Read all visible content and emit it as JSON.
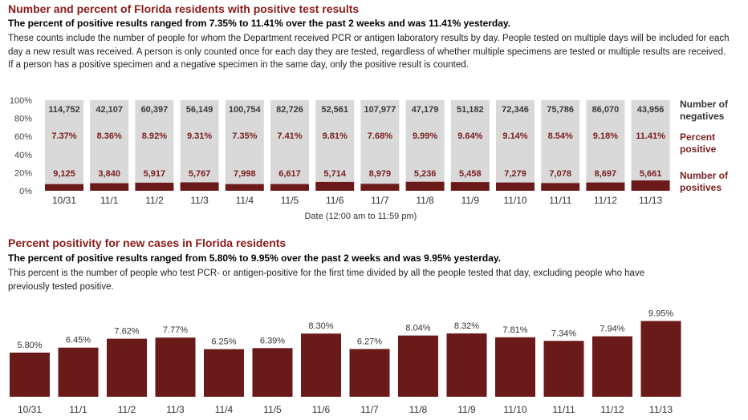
{
  "section1": {
    "title": "Number and percent of Florida residents with positive test results",
    "subtitle": "The percent of positive results ranged from 7.35% to 11.41% over the past 2 weeks and was 11.41% yesterday.",
    "description": "These counts include the number of people for whom the Department received PCR or antigen laboratory results by day. People tested on multiple days will be included for each day a new result was received. A person is only counted once for each day they are tested, regardless of whether multiple specimens are tested or multiple results are received. If a person has a positive specimen and a negative specimen in the same day, only the positive result is counted."
  },
  "section2": {
    "title": "Percent positivity for new cases in Florida residents",
    "subtitle": "The percent of positive results ranged from 5.80% to 9.95% over the past 2 weeks and was 9.95% yesterday.",
    "description": "This percent is the number of people who test PCR- or antigen-positive for the first time divided by all the people tested that day, excluding people who have previously tested positive."
  },
  "colors": {
    "positive": "#6b1a1a",
    "negative": "#d9d9d9",
    "label_red": "#7a2020",
    "title_red": "#8b1a1a"
  },
  "chart_data": [
    {
      "type": "bar",
      "stacked": true,
      "categories": [
        "10/31",
        "11/1",
        "11/2",
        "11/3",
        "11/4",
        "11/5",
        "11/6",
        "11/7",
        "11/8",
        "11/9",
        "11/10",
        "11/11",
        "11/12",
        "11/13"
      ],
      "xlabel": "Date (12:00 am to 11:59 pm)",
      "ylim": [
        0,
        100
      ],
      "yticks": [
        "0%",
        "20%",
        "40%",
        "60%",
        "80%",
        "100%"
      ],
      "series": [
        {
          "name": "Number of negatives",
          "labels": [
            "114,752",
            "42,107",
            "60,397",
            "56,149",
            "100,754",
            "82,726",
            "52,561",
            "107,977",
            "47,179",
            "51,182",
            "72,346",
            "75,786",
            "86,070",
            "43,956"
          ]
        },
        {
          "name": "Percent positive",
          "labels": [
            "7.37%",
            "8.36%",
            "8.92%",
            "9.31%",
            "7.35%",
            "7.41%",
            "9.81%",
            "7.68%",
            "9.99%",
            "9.64%",
            "9.14%",
            "8.54%",
            "9.18%",
            "11.41%"
          ],
          "values": [
            7.37,
            8.36,
            8.92,
            9.31,
            7.35,
            7.41,
            9.81,
            7.68,
            9.99,
            9.64,
            9.14,
            8.54,
            9.18,
            11.41
          ]
        },
        {
          "name": "Number of positives",
          "labels": [
            "9,125",
            "3,840",
            "5,917",
            "5,767",
            "7,998",
            "6,617",
            "5,714",
            "8,979",
            "5,236",
            "5,458",
            "7,279",
            "7,078",
            "8,697",
            "5,661"
          ]
        }
      ],
      "legend": [
        "Number of negatives",
        "Percent positive",
        "Number of positives"
      ]
    },
    {
      "type": "bar",
      "categories": [
        "10/31",
        "11/1",
        "11/2",
        "11/3",
        "11/4",
        "11/5",
        "11/6",
        "11/7",
        "11/8",
        "11/9",
        "11/10",
        "11/11",
        "11/12",
        "11/13"
      ],
      "values": [
        5.8,
        6.45,
        7.62,
        7.77,
        6.25,
        6.39,
        8.3,
        6.27,
        8.04,
        8.32,
        7.81,
        7.34,
        7.94,
        9.95
      ],
      "labels": [
        "5.80%",
        "6.45%",
        "7.62%",
        "7.77%",
        "6.25%",
        "6.39%",
        "8.30%",
        "6.27%",
        "8.04%",
        "8.32%",
        "7.81%",
        "7.34%",
        "7.94%",
        "9.95%"
      ]
    }
  ]
}
